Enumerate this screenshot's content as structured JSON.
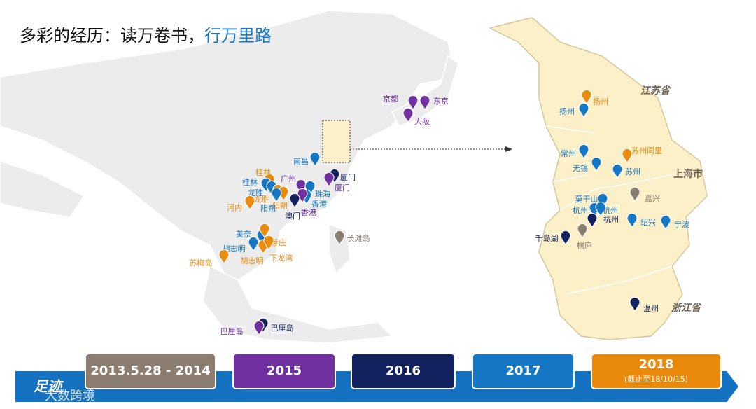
{
  "header": {
    "title": "多彩的经历：读万卷书，",
    "title_highlight": "行万里路"
  },
  "world_map": {
    "places": [
      {
        "label": "京都",
        "color": "#7030a0"
      },
      {
        "label": "东京",
        "color": "#7030a0"
      },
      {
        "label": "大阪",
        "color": "#7030a0"
      },
      {
        "label": "南昌",
        "color": "#1677c4"
      },
      {
        "label": "厦门",
        "color": "#13225e"
      },
      {
        "label": "厦门",
        "color": "#7030a0"
      },
      {
        "label": "广州",
        "color": "#7030a0"
      },
      {
        "label": "桂林",
        "color": "#ea8a0c"
      },
      {
        "label": "桂林",
        "color": "#1677c4"
      },
      {
        "label": "珠海",
        "color": "#1677c4"
      },
      {
        "label": "香港",
        "color": "#1677c4"
      },
      {
        "label": "香港",
        "color": "#7030a0"
      },
      {
        "label": "龙胜",
        "color": "#1677c4"
      },
      {
        "label": "龙胜",
        "color": "#ea8a0c"
      },
      {
        "label": "阳朔",
        "color": "#ea8a0c"
      },
      {
        "label": "阳朔",
        "color": "#1677c4"
      },
      {
        "label": "澳门",
        "color": "#13225e"
      },
      {
        "label": "河内",
        "color": "#ea8a0c"
      },
      {
        "label": "长滩岛",
        "color": "#8b7d70"
      },
      {
        "label": "美奈",
        "color": "#1677c4"
      },
      {
        "label": "芽庄",
        "color": "#ea8a0c"
      },
      {
        "label": "胡志明",
        "color": "#1677c4"
      },
      {
        "label": "胡志明",
        "color": "#ea8a0c"
      },
      {
        "label": "下龙湾",
        "color": "#ea8a0c"
      },
      {
        "label": "苏梅岛",
        "color": "#ea8a0c"
      },
      {
        "label": "巴厘岛",
        "color": "#13225e"
      },
      {
        "label": "巴厘岛",
        "color": "#7030a0"
      }
    ]
  },
  "detail_map": {
    "regions": [
      "江苏省",
      "上海市",
      "浙江省"
    ],
    "places": [
      {
        "label": "扬州",
        "color": "#ea8a0c"
      },
      {
        "label": "扬州",
        "color": "#1677c4"
      },
      {
        "label": "常州",
        "color": "#1677c4"
      },
      {
        "label": "苏州同里",
        "color": "#ea8a0c"
      },
      {
        "label": "无锡",
        "color": "#1677c4"
      },
      {
        "label": "苏州",
        "color": "#1677c4"
      },
      {
        "label": "嘉兴",
        "color": "#8b7d70"
      },
      {
        "label": "莫干山",
        "color": "#1677c4"
      },
      {
        "label": "杭州",
        "color": "#1677c4"
      },
      {
        "label": "杭州",
        "color": "#1677c4"
      },
      {
        "label": "杭州",
        "color": "#13225e"
      },
      {
        "label": "绍兴",
        "color": "#1677c4"
      },
      {
        "label": "宁波",
        "color": "#1677c4"
      },
      {
        "label": "千岛湖",
        "color": "#13225e"
      },
      {
        "label": "桐庐",
        "color": "#8b7d70"
      },
      {
        "label": "温州",
        "color": "#13225e"
      }
    ]
  },
  "timeline": {
    "label": "足迹",
    "periods": [
      {
        "label": "2013.5.28 - 2014",
        "color": "#8b7d70"
      },
      {
        "label": "2015",
        "color": "#7030a0"
      },
      {
        "label": "2016",
        "color": "#13225e"
      },
      {
        "label": "2017",
        "color": "#1677c4"
      },
      {
        "label": "2018",
        "note": "(截止至18/10/15)",
        "color": "#ea8a0c"
      }
    ]
  },
  "watermark": "大数跨境"
}
